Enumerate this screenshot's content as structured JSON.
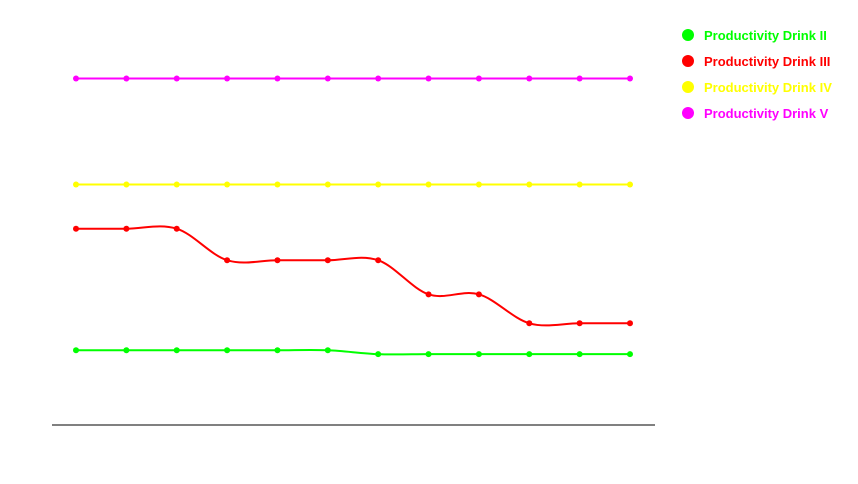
{
  "chart_data": {
    "type": "line",
    "title": "",
    "xlabel": "",
    "ylabel": "",
    "x": [
      1,
      2,
      3,
      4,
      5,
      6,
      7,
      8,
      9,
      10,
      11,
      12
    ],
    "ylim": [
      0,
      100
    ],
    "grid": false,
    "legend_position": "top-right",
    "smooth": true,
    "series": [
      {
        "name": "Productivity Drink II",
        "color": "#00ff00",
        "values": [
          23.0,
          23.0,
          23.0,
          23.0,
          23.0,
          23.0,
          21.8,
          21.8,
          21.8,
          21.8,
          21.8,
          21.8
        ]
      },
      {
        "name": "Productivity Drink III",
        "color": "#ff0000",
        "values": [
          60.4,
          60.4,
          60.4,
          50.7,
          50.7,
          50.7,
          50.7,
          40.2,
          40.2,
          31.3,
          31.3,
          31.3
        ]
      },
      {
        "name": "Productivity Drink IV",
        "color": "#ffff00",
        "values": [
          74.0,
          74.0,
          74.0,
          74.0,
          74.0,
          74.0,
          74.0,
          74.0,
          74.0,
          74.0,
          74.0,
          74.0
        ]
      },
      {
        "name": "Productivity Drink V",
        "color": "#ff00ff",
        "values": [
          106.6,
          106.6,
          106.6,
          106.6,
          106.6,
          106.6,
          106.6,
          106.6,
          106.6,
          106.6,
          106.6,
          106.6
        ]
      }
    ]
  }
}
